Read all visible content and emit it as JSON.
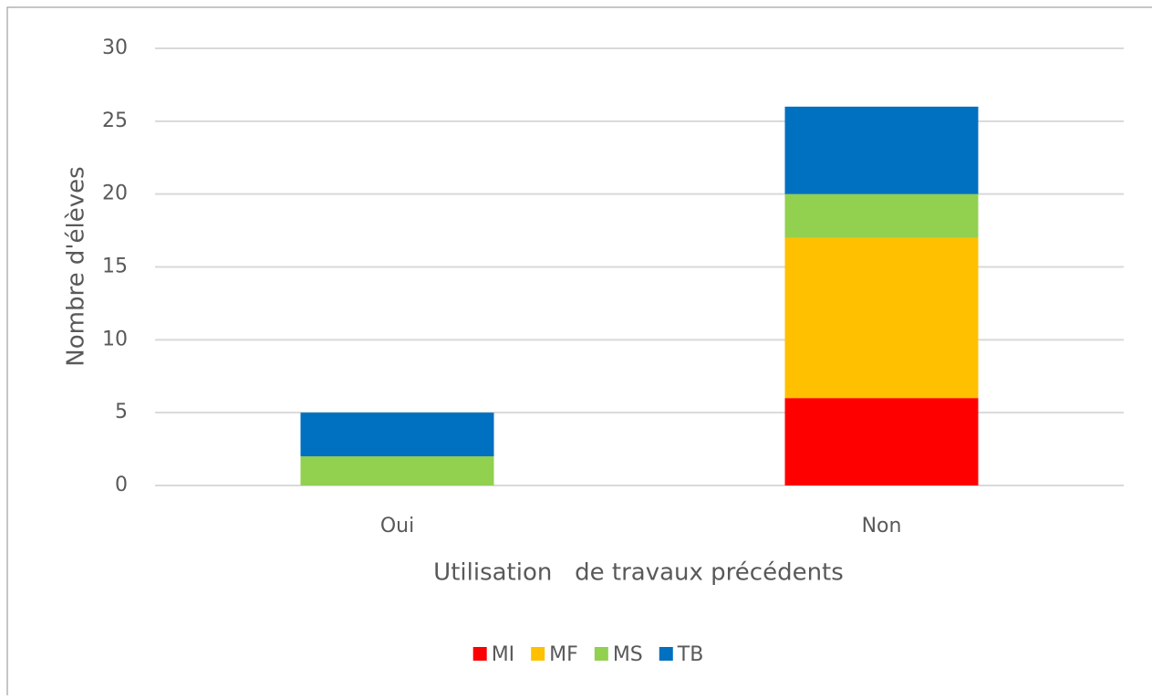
{
  "chart_data": {
    "type": "stacked_bar",
    "x_label": "Utilisation   de travaux précédents",
    "y_label": "Nombre d'élèves",
    "categories": [
      "Oui",
      "Non"
    ],
    "series": [
      {
        "name": "MI",
        "color": "#ff0000",
        "values": [
          0,
          6
        ]
      },
      {
        "name": "MF",
        "color": "#ffc000",
        "values": [
          0,
          11
        ]
      },
      {
        "name": "MS",
        "color": "#92d050",
        "values": [
          2,
          3
        ]
      },
      {
        "name": "TB",
        "color": "#0070c0",
        "values": [
          3,
          6
        ]
      }
    ],
    "ylim": [
      0,
      30
    ],
    "yticks": [
      0,
      5,
      10,
      15,
      20,
      25,
      30
    ],
    "grid": true,
    "legend": "bottom"
  }
}
